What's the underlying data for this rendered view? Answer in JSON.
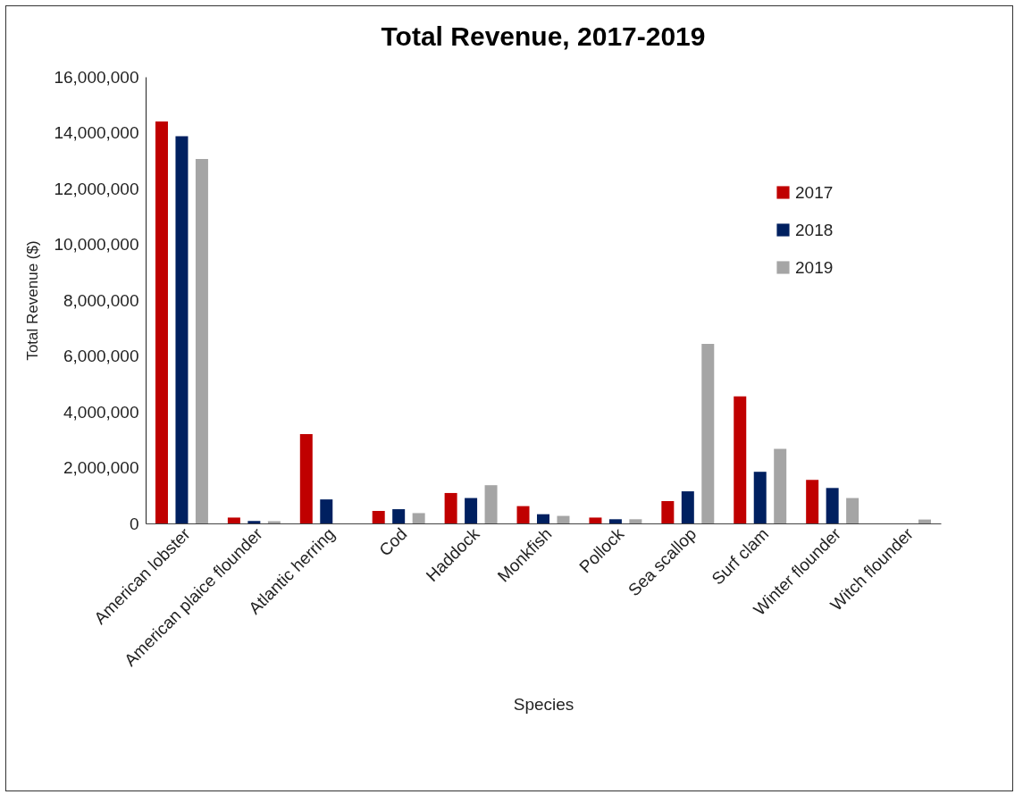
{
  "chart_data": {
    "type": "bar",
    "title": "Total Revenue, 2017-2019",
    "xlabel": "Species",
    "ylabel": "Total Revenue ($)",
    "categories": [
      "American lobster",
      "American plaice flounder",
      "Atlantic herring",
      "Cod",
      "Haddock",
      "Monkfish",
      "Pollock",
      "Sea scallop",
      "Surf clam",
      "Winter flounder",
      "Witch flounder"
    ],
    "series": [
      {
        "name": "2017",
        "color": "#c00000",
        "values": [
          14400000,
          210000,
          3200000,
          450000,
          1090000,
          620000,
          210000,
          800000,
          4550000,
          1560000,
          null
        ]
      },
      {
        "name": "2018",
        "color": "#002060",
        "values": [
          13870000,
          90000,
          860000,
          510000,
          910000,
          330000,
          150000,
          1150000,
          1850000,
          1270000,
          null
        ]
      },
      {
        "name": "2019",
        "color": "#a5a5a5",
        "values": [
          13060000,
          80000,
          null,
          370000,
          1370000,
          270000,
          150000,
          6430000,
          2670000,
          910000,
          140000
        ]
      }
    ],
    "ylim": [
      0,
      16000000
    ],
    "yticks": [
      0,
      {
        "value": 2000000,
        "label": "2,000,000"
      },
      {
        "value": 4000000,
        "label": "4,000,000"
      },
      {
        "value": 6000000,
        "label": "6,000,000"
      },
      {
        "value": 8000000,
        "label": "8,000,000"
      },
      {
        "value": 10000000,
        "label": "10,000,000"
      },
      {
        "value": 12000000,
        "label": "12,000,000"
      },
      {
        "value": 14000000,
        "label": "14,000,000"
      },
      {
        "value": 16000000,
        "label": "16,000,000"
      }
    ],
    "grid": false,
    "legend": "top right"
  }
}
